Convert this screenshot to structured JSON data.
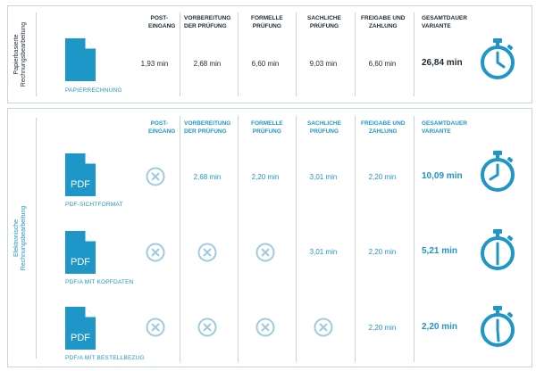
{
  "sections": {
    "paper": "Papierbasierte Rechnungsbearbeitung",
    "electronic": "Elektronische Rechnungsbearbeitung"
  },
  "headers": {
    "post": "Post-\neingang",
    "vorbereitung": "Vorbereitung\nder Prüfung",
    "formelle": "Formelle\nPrüfung",
    "sachliche": "Sachliche\nPrüfung",
    "freigabe": "Freigabe und\nZahlung",
    "gesamt": "Gesamtdauer\nVariante"
  },
  "rows": {
    "paper": {
      "label": "PAPIERRECHNUNG",
      "post": "1,93 min",
      "vorbereitung": "2,68 min",
      "formelle": "6,60 min",
      "sachliche": "9,03 min",
      "freigabe": "6,60 min",
      "total": "26,84 min"
    },
    "sicht": {
      "label": "PDF-SICHTFORMAT",
      "icon_text": "PDF",
      "vorbereitung": "2,68 min",
      "formelle": "2,20 min",
      "sachliche": "3,01 min",
      "freigabe": "2,20 min",
      "total": "10,09 min"
    },
    "kopf": {
      "label": "PDF/A MIT KOPFDATEN",
      "icon_text": "PDF",
      "sachliche": "3,01 min",
      "freigabe": "2,20 min",
      "total": "5,21 min"
    },
    "bestell": {
      "label": "PDF/A MIT BESTELLBEZUG",
      "icon_text": "PDF",
      "freigabe": "2,20 min",
      "total": "2,20 min"
    }
  },
  "colors": {
    "accent": "#1f96c8",
    "x_mark": "#9fcbe0",
    "text": "#1e2933",
    "border": "#c4d6e0"
  }
}
